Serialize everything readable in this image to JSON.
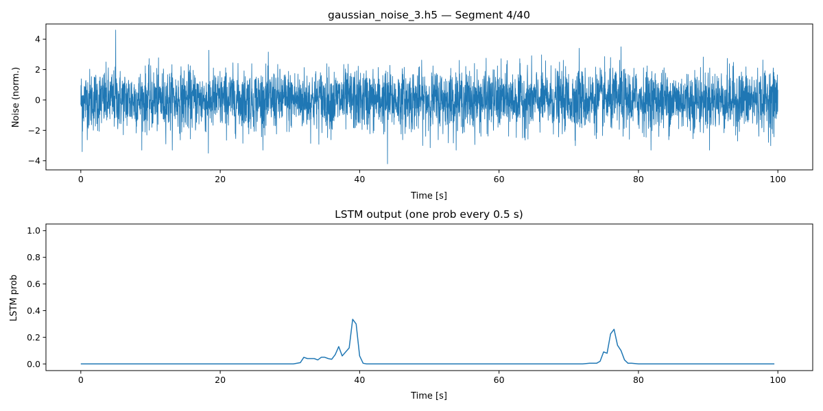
{
  "chart_data": [
    {
      "type": "line",
      "title": "gaussian_noise_3.h5 — Segment 4/40",
      "xlabel": "Time [s]",
      "ylabel": "Noise (norm.)",
      "xlim": [
        -5,
        105
      ],
      "ylim": [
        -4.6,
        5.0
      ],
      "xticks": [
        0,
        20,
        40,
        60,
        80,
        100
      ],
      "yticks": [
        -4,
        -2,
        0,
        2,
        4
      ],
      "xtick_labels": [
        "0",
        "20",
        "40",
        "60",
        "80",
        "100"
      ],
      "ytick_labels": [
        "−4",
        "−2",
        "0",
        "2",
        "4"
      ],
      "grid": false,
      "color": "#1f77b4",
      "series": [
        {
          "description": "normalized Gaussian noise sampled densely over 0–100 s",
          "x_range": [
            0,
            100
          ],
          "mean": 0,
          "std": 1.0,
          "extremes": [
            {
              "x": 5.0,
              "y": 4.6
            },
            {
              "x": 44.0,
              "y": -4.2
            },
            {
              "x": 77.5,
              "y": 3.5
            },
            {
              "x": 71.5,
              "y": 3.4
            },
            {
              "x": 0.2,
              "y": -3.4
            },
            {
              "x": 18.3,
              "y": -3.5
            }
          ]
        }
      ]
    },
    {
      "type": "line",
      "title": "LSTM output (one prob every 0.5 s)",
      "xlabel": "Time [s]",
      "ylabel": "LSTM prob",
      "xlim": [
        -5,
        105
      ],
      "ylim": [
        -0.05,
        1.05
      ],
      "xticks": [
        0,
        20,
        40,
        60,
        80,
        100
      ],
      "yticks": [
        0.0,
        0.2,
        0.4,
        0.6,
        0.8,
        1.0
      ],
      "xtick_labels": [
        "0",
        "20",
        "40",
        "60",
        "80",
        "100"
      ],
      "ytick_labels": [
        "0.0",
        "0.2",
        "0.4",
        "0.6",
        "0.8",
        "1.0"
      ],
      "grid": false,
      "color": "#1f77b4",
      "series": [
        {
          "x": [
            0,
            30.5,
            31.5,
            32.0,
            32.5,
            33.0,
            33.5,
            34.0,
            34.5,
            35.0,
            35.5,
            36.0,
            36.5,
            37.0,
            37.5,
            38.0,
            38.5,
            39.0,
            39.5,
            40.0,
            40.5,
            41.0,
            72.0,
            73.0,
            73.5,
            74.0,
            74.5,
            75.0,
            75.5,
            76.0,
            76.5,
            77.0,
            77.5,
            78.0,
            78.5,
            79.0,
            80.0,
            99.5
          ],
          "y": [
            0.0,
            0.0,
            0.01,
            0.05,
            0.04,
            0.04,
            0.04,
            0.03,
            0.05,
            0.05,
            0.04,
            0.035,
            0.07,
            0.13,
            0.06,
            0.09,
            0.12,
            0.335,
            0.3,
            0.06,
            0.005,
            0.0,
            0.0,
            0.005,
            0.005,
            0.005,
            0.02,
            0.09,
            0.08,
            0.225,
            0.26,
            0.14,
            0.1,
            0.03,
            0.005,
            0.005,
            0.0,
            0.0
          ]
        }
      ]
    }
  ]
}
